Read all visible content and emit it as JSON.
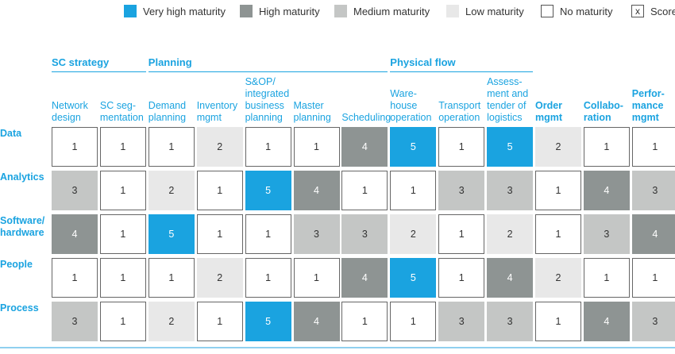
{
  "colors": {
    "accent": "#1aa3e0",
    "level5": "#1aa3e0",
    "level4": "#8e9493",
    "level3": "#c4c6c5",
    "level2": "#e8e8e8",
    "level1": "#ffffff"
  },
  "legend": [
    {
      "level": 5,
      "label": "Very high maturity"
    },
    {
      "level": 4,
      "label": "High maturity"
    },
    {
      "level": 3,
      "label": "Medium maturity"
    },
    {
      "level": 2,
      "label": "Low maturity"
    },
    {
      "level": 1,
      "label": "No maturity"
    },
    {
      "level": 0,
      "label": "Score",
      "symbol": "x"
    }
  ],
  "chart_data": {
    "type": "heatmap",
    "groups": [
      {
        "name": "SC strategy",
        "first_col": 0,
        "last_col": 1
      },
      {
        "name": "Planning",
        "first_col": 2,
        "last_col": 6
      },
      {
        "name": "Physical flow",
        "first_col": 7,
        "last_col": 9
      }
    ],
    "columns": [
      {
        "label": "Network\ndesign",
        "bold": false
      },
      {
        "label": "SC seg-\nmentation",
        "bold": false
      },
      {
        "label": "Demand\nplanning",
        "bold": false
      },
      {
        "label": "Inventory\nmgmt",
        "bold": false
      },
      {
        "label": "S&OP/\nintegrated\nbusiness\nplanning",
        "bold": false
      },
      {
        "label": "Master\nplanning",
        "bold": false
      },
      {
        "label": "Scheduling",
        "bold": false
      },
      {
        "label": "Ware-\nhouse\noperation",
        "bold": false
      },
      {
        "label": "Transport\noperation",
        "bold": false
      },
      {
        "label": "Assess-\nment and\ntender of\nlogistics",
        "bold": false
      },
      {
        "label": "Order\nmgmt",
        "bold": true
      },
      {
        "label": "Collabo-\nration",
        "bold": true
      },
      {
        "label": "Perfor-\nmance\nmgmt",
        "bold": true
      }
    ],
    "rows": [
      {
        "label": "Data",
        "values": [
          1,
          1,
          1,
          2,
          1,
          1,
          4,
          5,
          1,
          5,
          2,
          1,
          1
        ]
      },
      {
        "label": "Analytics",
        "values": [
          3,
          1,
          2,
          1,
          5,
          4,
          1,
          1,
          3,
          3,
          1,
          4,
          3
        ]
      },
      {
        "label": "Software/\nhardware",
        "values": [
          4,
          1,
          5,
          1,
          1,
          3,
          3,
          2,
          1,
          2,
          1,
          3,
          4
        ]
      },
      {
        "label": "People",
        "values": [
          1,
          1,
          1,
          2,
          1,
          1,
          4,
          5,
          1,
          4,
          2,
          1,
          1
        ]
      },
      {
        "label": "Process",
        "values": [
          3,
          1,
          2,
          1,
          5,
          4,
          1,
          1,
          3,
          3,
          1,
          4,
          3
        ]
      }
    ]
  }
}
